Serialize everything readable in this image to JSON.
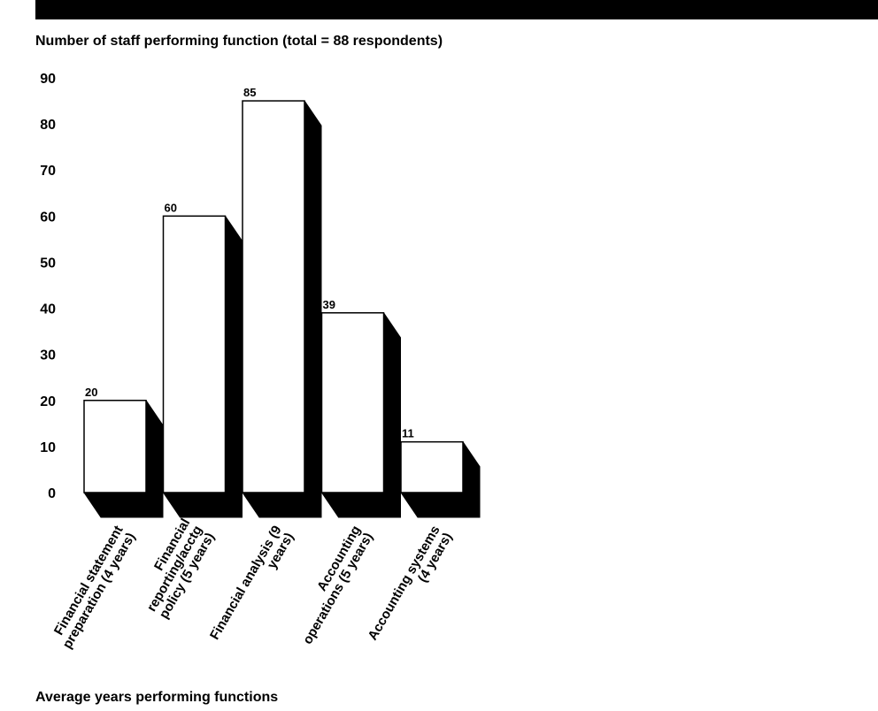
{
  "chart_data": {
    "type": "bar",
    "title": "Number of staff performing function (total = 88 respondents)",
    "xlabel": "Average years performing functions",
    "ylabel": "",
    "ylim": [
      0,
      90
    ],
    "yticks": [
      "90",
      "80",
      "70",
      "60",
      "50",
      "40",
      "30",
      "20",
      "10",
      "0"
    ],
    "categories": [
      [
        "Financial statement",
        "preparation (4 years)"
      ],
      [
        "Financial",
        "reporting/acctg",
        "policy (5 years)"
      ],
      [
        "Financial analysis (9",
        "years)"
      ],
      [
        "Accounting",
        "operations (5 years)"
      ],
      [
        "Accounting systems",
        "(4 years)"
      ]
    ],
    "values": [
      20,
      60,
      85,
      39,
      11
    ],
    "value_labels": [
      "20",
      "60",
      "85",
      "39",
      "11"
    ],
    "bar_fill": "#ffffff",
    "shadow_fill": "#000000"
  }
}
